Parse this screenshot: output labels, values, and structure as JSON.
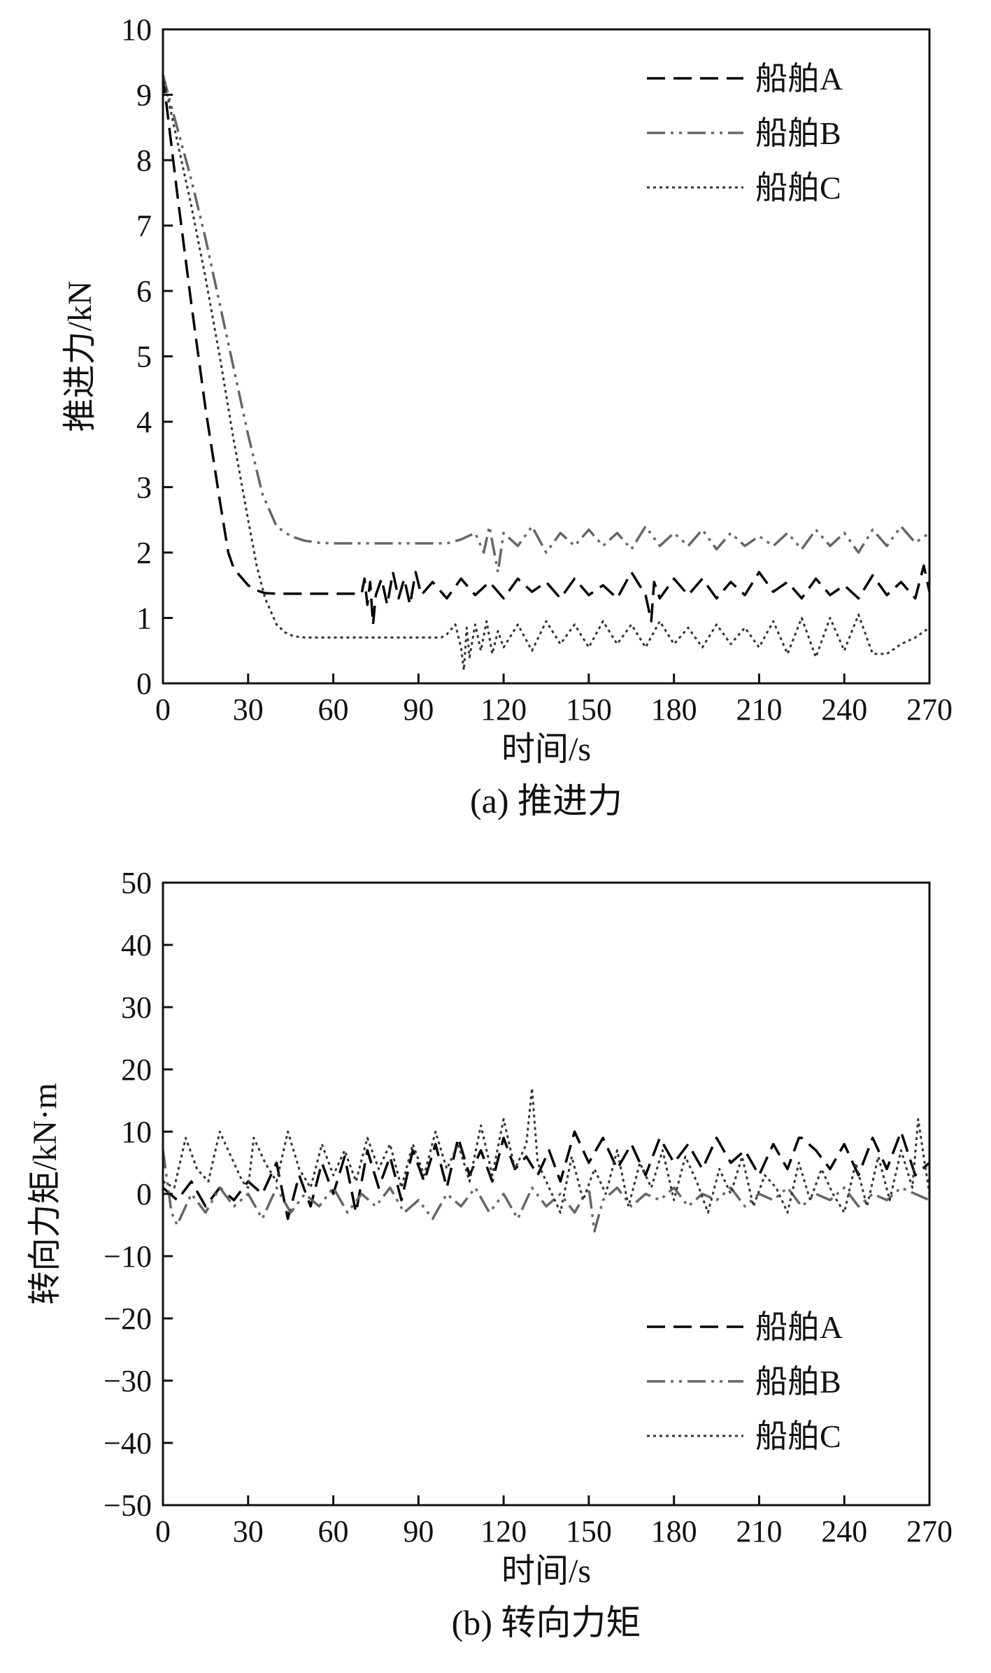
{
  "chart_data": [
    {
      "type": "line",
      "caption": "(a) 推进力",
      "xlabel": "时间/s",
      "ylabel": "推进力/kN",
      "xlim": [
        0,
        270
      ],
      "ylim": [
        0,
        10
      ],
      "xticks": [
        0,
        30,
        60,
        90,
        120,
        150,
        180,
        210,
        240,
        270
      ],
      "yticks": [
        0,
        1,
        2,
        3,
        4,
        5,
        6,
        7,
        8,
        9,
        10
      ],
      "legend_position": "top-right",
      "series": [
        {
          "name": "船舶A",
          "style": "dashed",
          "color": "#000000",
          "x": [
            0,
            5,
            10,
            15,
            20,
            23,
            25,
            28,
            30,
            33,
            36,
            40,
            45,
            50,
            55,
            60,
            65,
            70,
            71,
            72,
            73,
            74,
            75,
            77,
            79,
            81,
            83,
            85,
            87,
            89,
            91,
            95,
            100,
            105,
            110,
            115,
            120,
            125,
            130,
            135,
            140,
            145,
            150,
            155,
            160,
            165,
            170,
            172,
            173,
            175,
            180,
            185,
            190,
            195,
            200,
            205,
            210,
            215,
            220,
            225,
            230,
            235,
            240,
            245,
            250,
            255,
            260,
            265,
            268,
            270
          ],
          "y": [
            9.3,
            7.5,
            5.8,
            4.2,
            2.8,
            2.0,
            1.75,
            1.6,
            1.5,
            1.42,
            1.38,
            1.37,
            1.37,
            1.37,
            1.37,
            1.37,
            1.37,
            1.37,
            1.6,
            1.2,
            1.55,
            0.9,
            1.35,
            1.6,
            1.2,
            1.7,
            1.3,
            1.6,
            1.2,
            1.7,
            1.35,
            1.55,
            1.3,
            1.6,
            1.35,
            1.55,
            1.3,
            1.6,
            1.4,
            1.55,
            1.3,
            1.6,
            1.35,
            1.5,
            1.3,
            1.7,
            1.35,
            0.95,
            1.55,
            1.3,
            1.6,
            1.35,
            1.6,
            1.3,
            1.55,
            1.35,
            1.7,
            1.4,
            1.55,
            1.3,
            1.6,
            1.35,
            1.5,
            1.3,
            1.65,
            1.35,
            1.55,
            1.3,
            1.8,
            1.4
          ]
        },
        {
          "name": "船舶B",
          "style": "dashdotdot",
          "color": "#666666",
          "x": [
            0,
            5,
            10,
            15,
            20,
            25,
            30,
            35,
            40,
            45,
            50,
            55,
            60,
            70,
            80,
            90,
            100,
            105,
            110,
            113,
            115,
            118,
            120,
            125,
            130,
            135,
            140,
            145,
            150,
            155,
            160,
            165,
            170,
            175,
            180,
            185,
            190,
            195,
            200,
            205,
            210,
            215,
            220,
            225,
            230,
            235,
            240,
            245,
            250,
            255,
            260,
            265,
            270
          ],
          "y": [
            9.3,
            8.5,
            7.7,
            6.8,
            5.8,
            4.8,
            3.8,
            2.9,
            2.4,
            2.25,
            2.18,
            2.15,
            2.14,
            2.14,
            2.14,
            2.14,
            2.14,
            2.2,
            2.3,
            2.0,
            2.4,
            1.7,
            2.3,
            2.1,
            2.4,
            2.0,
            2.3,
            2.1,
            2.35,
            2.1,
            2.3,
            2.05,
            2.4,
            2.1,
            2.3,
            2.1,
            2.35,
            2.05,
            2.3,
            2.1,
            2.25,
            2.1,
            2.3,
            2.05,
            2.35,
            2.1,
            2.3,
            2.0,
            2.35,
            2.1,
            2.4,
            2.15,
            2.3
          ]
        },
        {
          "name": "船舶C",
          "style": "dotted",
          "color": "#333333",
          "x": [
            0,
            5,
            10,
            15,
            20,
            25,
            30,
            33,
            36,
            38,
            40,
            43,
            46,
            50,
            55,
            60,
            70,
            80,
            90,
            98,
            100,
            103,
            105,
            106,
            107,
            108,
            110,
            112,
            114,
            116,
            118,
            120,
            125,
            130,
            135,
            140,
            145,
            150,
            155,
            160,
            165,
            170,
            175,
            180,
            185,
            190,
            195,
            200,
            205,
            210,
            215,
            220,
            225,
            230,
            235,
            240,
            245,
            250,
            255,
            260,
            265,
            270
          ],
          "y": [
            9.3,
            8.3,
            7.3,
            6.2,
            5.0,
            3.7,
            2.5,
            1.8,
            1.3,
            1.1,
            0.9,
            0.78,
            0.72,
            0.7,
            0.7,
            0.7,
            0.7,
            0.7,
            0.7,
            0.7,
            0.75,
            0.9,
            0.55,
            0.2,
            0.85,
            0.4,
            0.9,
            0.5,
            0.95,
            0.45,
            0.8,
            0.55,
            0.9,
            0.5,
            0.95,
            0.6,
            0.9,
            0.55,
            0.95,
            0.6,
            0.9,
            0.55,
            0.95,
            0.6,
            0.85,
            0.55,
            0.9,
            0.6,
            0.85,
            0.55,
            0.95,
            0.45,
            1.0,
            0.4,
            1.0,
            0.5,
            1.05,
            0.45,
            0.45,
            0.6,
            0.7,
            0.85
          ]
        }
      ]
    },
    {
      "type": "line",
      "caption": "(b) 转向力矩",
      "xlabel": "时间/s",
      "ylabel": "转向力矩/kN·m",
      "xlim": [
        0,
        270
      ],
      "ylim": [
        -50,
        50
      ],
      "xticks": [
        0,
        30,
        60,
        90,
        120,
        150,
        180,
        210,
        240,
        270
      ],
      "yticks": [
        -50,
        -40,
        -30,
        -20,
        -10,
        0,
        10,
        20,
        30,
        40,
        50
      ],
      "legend_position": "bottom-right",
      "series": [
        {
          "name": "船舶A",
          "style": "dashed",
          "color": "#000000",
          "x": [
            0,
            5,
            10,
            15,
            20,
            25,
            30,
            35,
            40,
            44,
            48,
            52,
            56,
            60,
            64,
            68,
            72,
            76,
            80,
            84,
            88,
            92,
            96,
            100,
            104,
            108,
            112,
            116,
            120,
            124,
            128,
            132,
            136,
            140,
            145,
            150,
            155,
            160,
            165,
            170,
            175,
            180,
            185,
            190,
            195,
            200,
            205,
            210,
            215,
            220,
            224,
            225,
            230,
            235,
            240,
            245,
            250,
            255,
            260,
            265,
            270
          ],
          "y": [
            1,
            -1,
            2,
            -2,
            1,
            -1,
            2,
            0,
            5,
            -4,
            3,
            -2,
            5,
            0,
            6,
            -3,
            7,
            1,
            6,
            -1,
            7,
            2,
            8,
            1,
            9,
            3,
            7,
            2,
            9,
            4,
            6,
            3,
            7,
            2,
            10,
            5,
            9,
            4,
            8,
            3,
            9,
            5,
            8,
            4,
            9,
            5,
            7,
            3,
            8,
            4,
            9,
            9,
            7,
            4,
            8,
            3,
            9,
            4,
            10,
            3,
            5
          ]
        },
        {
          "name": "船舶B",
          "style": "dashdotdot",
          "color": "#666666",
          "x": [
            0,
            3,
            5,
            10,
            15,
            20,
            25,
            30,
            35,
            40,
            45,
            50,
            55,
            60,
            65,
            70,
            75,
            80,
            85,
            90,
            95,
            100,
            105,
            110,
            115,
            120,
            125,
            130,
            135,
            140,
            145,
            150,
            152,
            155,
            160,
            165,
            170,
            175,
            180,
            185,
            190,
            195,
            200,
            205,
            210,
            215,
            220,
            225,
            230,
            235,
            240,
            245,
            250,
            255,
            260,
            265,
            270
          ],
          "y": [
            7,
            -3,
            -5,
            0,
            -3,
            1,
            -2,
            0,
            -4,
            1,
            -3,
            0,
            -2,
            1,
            -3,
            0,
            -2,
            1,
            -3,
            -1,
            -4,
            0,
            -2,
            1,
            -3,
            0,
            -4,
            1,
            -2,
            0,
            -3,
            1,
            -6,
            -1,
            1,
            -2,
            0,
            -1,
            1,
            -2,
            0,
            -1,
            1,
            -2,
            0,
            -1,
            1,
            -2,
            0,
            -1,
            1,
            -2,
            0,
            -1,
            1,
            0,
            -1
          ]
        },
        {
          "name": "船舶C",
          "style": "dotted",
          "color": "#333333",
          "x": [
            0,
            4,
            8,
            12,
            16,
            20,
            24,
            28,
            30,
            32,
            36,
            40,
            44,
            48,
            52,
            56,
            60,
            64,
            68,
            72,
            76,
            80,
            84,
            88,
            92,
            96,
            100,
            104,
            108,
            112,
            116,
            120,
            124,
            128,
            130,
            132,
            136,
            140,
            144,
            148,
            152,
            156,
            160,
            164,
            168,
            172,
            176,
            180,
            184,
            188,
            192,
            196,
            200,
            204,
            208,
            212,
            216,
            220,
            224,
            228,
            232,
            236,
            240,
            244,
            248,
            252,
            256,
            260,
            264,
            266,
            270
          ],
          "y": [
            2,
            1,
            9,
            4,
            2,
            10,
            6,
            2,
            1,
            9,
            5,
            2,
            10,
            4,
            1,
            8,
            3,
            7,
            2,
            9,
            4,
            8,
            1,
            8,
            3,
            10,
            4,
            8,
            2,
            11,
            3,
            12,
            4,
            8,
            17,
            5,
            1,
            -3,
            6,
            -1,
            4,
            0,
            7,
            -2,
            5,
            1,
            7,
            -1,
            6,
            2,
            -3,
            4,
            0,
            6,
            -2,
            3,
            1,
            -3,
            5,
            -1,
            4,
            0,
            -3,
            5,
            -2,
            6,
            -1,
            7,
            1,
            12,
            0
          ]
        }
      ]
    }
  ]
}
